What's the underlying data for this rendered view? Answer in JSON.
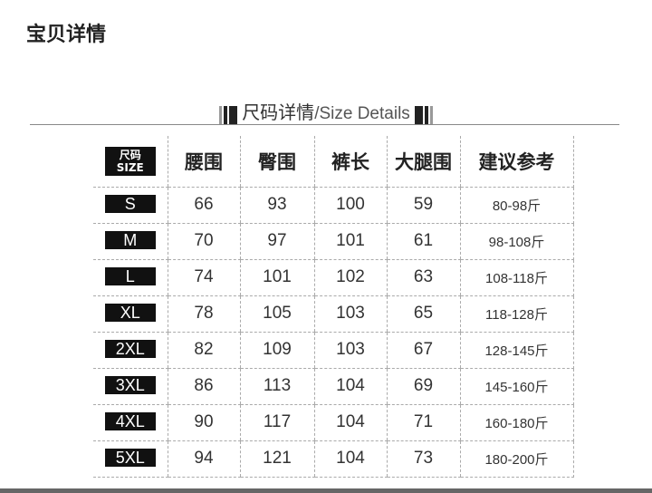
{
  "page_title": "宝贝详情",
  "section": {
    "title_cn": "尺码详情",
    "separator": "/",
    "title_en": "Size Details"
  },
  "table": {
    "size_header": {
      "cn": "尺码",
      "en": "SIZE"
    },
    "columns": [
      "腰围",
      "臀围",
      "裤长",
      "大腿围",
      "建议参考"
    ],
    "rows": [
      {
        "size": "S",
        "values": [
          "66",
          "93",
          "100",
          "59",
          "80-98斤"
        ]
      },
      {
        "size": "M",
        "values": [
          "70",
          "97",
          "101",
          "61",
          "98-108斤"
        ]
      },
      {
        "size": "L",
        "values": [
          "74",
          "101",
          "102",
          "63",
          "108-118斤"
        ]
      },
      {
        "size": "XL",
        "values": [
          "78",
          "105",
          "103",
          "65",
          "118-128斤"
        ]
      },
      {
        "size": "2XL",
        "values": [
          "82",
          "109",
          "103",
          "67",
          "128-145斤"
        ]
      },
      {
        "size": "3XL",
        "values": [
          "86",
          "113",
          "104",
          "69",
          "145-160斤"
        ]
      },
      {
        "size": "4XL",
        "values": [
          "90",
          "117",
          "104",
          "71",
          "160-180斤"
        ]
      },
      {
        "size": "5XL",
        "values": [
          "94",
          "121",
          "104",
          "73",
          "180-200斤"
        ]
      }
    ]
  }
}
